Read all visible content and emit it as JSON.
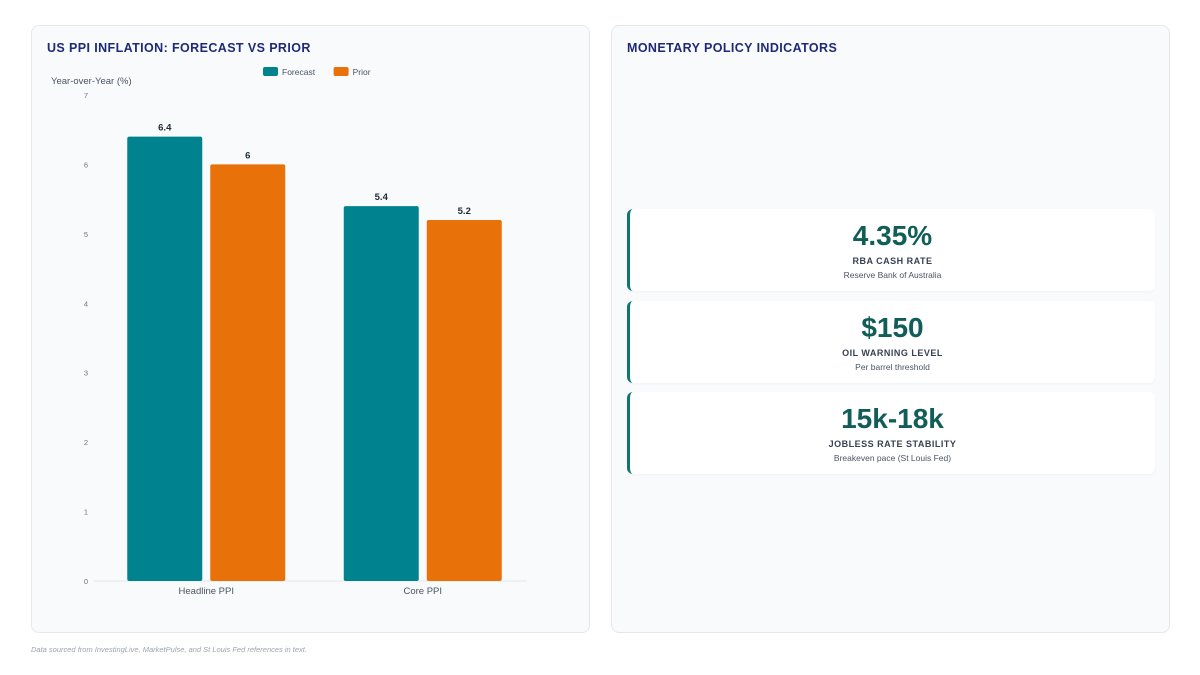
{
  "left_panel": {
    "title": "US PPI INFLATION: FORECAST VS PRIOR"
  },
  "right_panel": {
    "title": "MONETARY POLICY INDICATORS",
    "cards": [
      {
        "value": "4.35%",
        "label": "RBA CASH RATE",
        "sub": "Reserve Bank of Australia"
      },
      {
        "value": "$150",
        "label": "OIL WARNING LEVEL",
        "sub": "Per barrel threshold"
      },
      {
        "value": "15k-18k",
        "label": "JOBLESS RATE STABILITY",
        "sub": "Breakeven pace (St Louis Fed)"
      }
    ]
  },
  "footer": {
    "note": "Data sourced from InvestingLive, MarketPulse, and St Louis Fed references in text."
  },
  "colors": {
    "forecast": "#00838f",
    "prior": "#e8710a"
  },
  "chart_data": {
    "type": "bar",
    "title": "US PPI INFLATION: FORECAST VS PRIOR",
    "ylabel": "Year-over-Year (%)",
    "xlabel": "",
    "ylim": [
      0,
      7
    ],
    "yticks": [
      0,
      1,
      2,
      3,
      4,
      5,
      6,
      7
    ],
    "categories": [
      "Headline PPI",
      "Core PPI"
    ],
    "series": [
      {
        "name": "Forecast",
        "values": [
          6.4,
          5.4
        ],
        "color": "#00838f"
      },
      {
        "name": "Prior",
        "values": [
          6,
          5.2
        ],
        "color": "#e8710a"
      }
    ],
    "legend": "top-center",
    "grid": false
  }
}
